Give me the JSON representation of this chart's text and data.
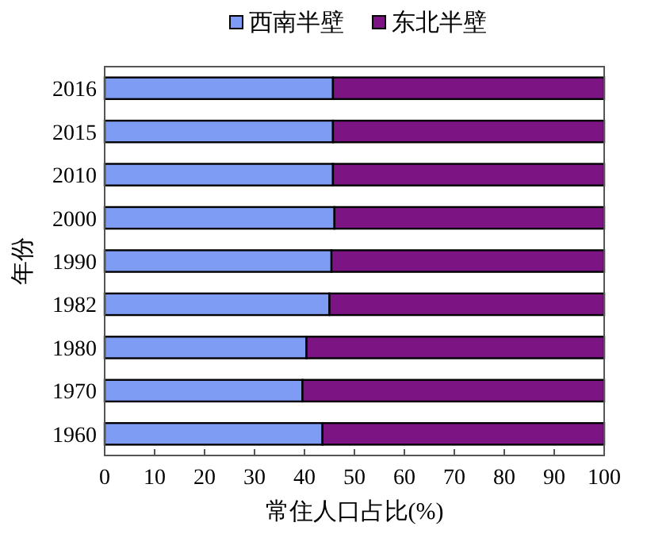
{
  "chart_data": {
    "type": "bar",
    "orientation": "horizontal",
    "stacked": true,
    "xlabel": "常住人口占比(%)",
    "ylabel": "年份",
    "categories": [
      "2016",
      "2015",
      "2010",
      "2000",
      "1990",
      "1982",
      "1980",
      "1970",
      "1960"
    ],
    "series": [
      {
        "name": "西南半壁",
        "color": "#7f9cf5",
        "values": [
          45.7,
          45.7,
          45.7,
          46.0,
          45.4,
          45.0,
          40.4,
          39.6,
          43.6
        ]
      },
      {
        "name": "东北半壁",
        "color": "#7c1484",
        "values": [
          54.3,
          54.3,
          54.3,
          54.0,
          54.6,
          55.0,
          59.6,
          60.4,
          56.4
        ]
      }
    ],
    "xlim": [
      0,
      100
    ],
    "xticks": [
      0,
      10,
      20,
      30,
      40,
      50,
      60,
      70,
      80,
      90,
      100
    ],
    "grid": false,
    "legend": "top"
  }
}
